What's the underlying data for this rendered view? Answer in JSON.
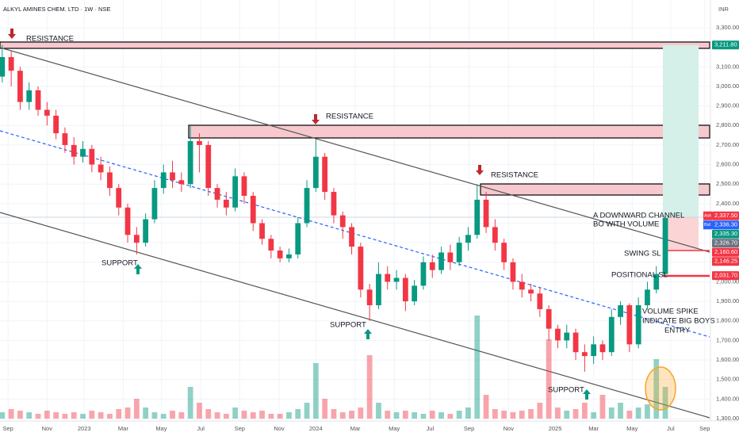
{
  "chart_data": {
    "type": "candlestick",
    "title": "ALKYL AMINES CHEM. LTD · 1W · NSE",
    "currency": "INR",
    "up_color": "#089981",
    "down_color": "#f23645",
    "x": [
      0,
      2,
      4,
      6,
      8,
      10,
      12,
      14,
      16,
      18,
      20,
      22,
      24,
      26,
      28,
      30,
      32,
      34,
      36,
      38,
      40,
      42,
      44,
      46,
      48,
      50,
      52,
      54,
      56,
      58,
      60,
      62,
      64,
      66,
      68,
      70,
      72,
      74,
      76,
      78,
      80,
      82,
      84,
      86,
      88,
      90,
      92,
      94,
      96,
      98,
      100,
      102,
      104,
      106,
      108,
      110,
      112,
      114,
      116,
      118,
      120,
      122,
      124,
      126,
      128,
      130,
      132,
      134,
      136,
      138,
      140,
      142,
      144,
      146,
      148
    ],
    "open": [
      3050,
      3150,
      3080,
      2920,
      2980,
      2880,
      2850,
      2760,
      2700,
      2640,
      2680,
      2600,
      2560,
      2480,
      2380,
      2240,
      2200,
      2320,
      2480,
      2560,
      2520,
      2500,
      2720,
      2700,
      2480,
      2420,
      2380,
      2540,
      2440,
      2300,
      2220,
      2160,
      2120,
      2140,
      2300,
      2480,
      2640,
      2460,
      2340,
      2280,
      2180,
      1960,
      1880,
      2040,
      2000,
      2020,
      1900,
      1980,
      2100,
      2060,
      2150,
      2100,
      2200,
      2240,
      2420,
      2280,
      2200,
      2100,
      2000,
      1960,
      1940,
      1860,
      1760,
      1700,
      1740,
      1640,
      1620,
      1680,
      1640,
      1820,
      1880,
      1680,
      1880,
      1960,
      2040
    ],
    "high": [
      3211.8,
      3180,
      3100,
      3020,
      3000,
      2920,
      2880,
      2790,
      2740,
      2720,
      2700,
      2640,
      2590,
      2500,
      2400,
      2280,
      2350,
      2520,
      2600,
      2620,
      2560,
      2800,
      2760,
      2720,
      2500,
      2460,
      2580,
      2560,
      2460,
      2320,
      2240,
      2180,
      2170,
      2330,
      2520,
      2730,
      2660,
      2480,
      2360,
      2300,
      2200,
      1990,
      2100,
      2080,
      2060,
      2040,
      2010,
      2130,
      2140,
      2180,
      2190,
      2230,
      2280,
      2500,
      2460,
      2320,
      2220,
      2120,
      2040,
      1990,
      1970,
      1880,
      1780,
      1780,
      1760,
      1680,
      1720,
      1700,
      1860,
      1900,
      1890,
      1920,
      2000,
      2080,
      2337.5
    ],
    "low": [
      3020,
      3000,
      2880,
      2880,
      2850,
      2800,
      2730,
      2660,
      2600,
      2610,
      2560,
      2520,
      2440,
      2340,
      2200,
      2140,
      2180,
      2300,
      2450,
      2480,
      2460,
      2480,
      2560,
      2440,
      2380,
      2340,
      2360,
      2400,
      2260,
      2190,
      2120,
      2100,
      2100,
      2120,
      2280,
      2460,
      2420,
      2300,
      2220,
      2140,
      1920,
      1800,
      1860,
      1960,
      1960,
      1850,
      1880,
      1960,
      2020,
      2040,
      2060,
      2080,
      2160,
      2220,
      2250,
      2160,
      2060,
      1960,
      1920,
      1900,
      1820,
      1700,
      1660,
      1660,
      1600,
      1540,
      1580,
      1600,
      1620,
      1780,
      1640,
      1660,
      1860,
      1940,
      2030
    ],
    "close": [
      3150,
      3080,
      2920,
      2980,
      2880,
      2850,
      2760,
      2700,
      2640,
      2680,
      2600,
      2560,
      2480,
      2380,
      2240,
      2200,
      2320,
      2480,
      2560,
      2520,
      2500,
      2720,
      2700,
      2480,
      2420,
      2380,
      2540,
      2440,
      2300,
      2220,
      2160,
      2120,
      2140,
      2300,
      2480,
      2640,
      2460,
      2340,
      2280,
      2180,
      1960,
      1880,
      2040,
      2000,
      2020,
      1900,
      1980,
      2100,
      2060,
      2150,
      2100,
      2200,
      2240,
      2420,
      2280,
      2200,
      2100,
      2000,
      1960,
      1940,
      1860,
      1760,
      1700,
      1740,
      1640,
      1620,
      1680,
      1640,
      1820,
      1880,
      1680,
      1880,
      1960,
      2040,
      2326.7
    ],
    "volume": [
      8,
      12,
      10,
      8,
      6,
      10,
      8,
      6,
      8,
      6,
      10,
      8,
      6,
      12,
      14,
      25,
      14,
      8,
      6,
      10,
      8,
      40,
      20,
      12,
      8,
      6,
      14,
      10,
      8,
      10,
      6,
      6,
      8,
      12,
      20,
      70,
      25,
      12,
      8,
      10,
      14,
      80,
      20,
      10,
      8,
      10,
      8,
      6,
      10,
      8,
      6,
      10,
      14,
      130,
      30,
      12,
      10,
      8,
      10,
      12,
      20,
      100,
      14,
      10,
      12,
      20,
      8,
      30,
      14,
      20,
      10,
      14,
      18,
      75,
      40
    ],
    "xlim": [
      -0.5,
      157.9
    ],
    "xticks": [
      {
        "value": 1.3,
        "label": "Sep"
      },
      {
        "value": 10,
        "label": "Nov"
      },
      {
        "value": 18.3,
        "label": "2023"
      },
      {
        "value": 27,
        "label": "Mar"
      },
      {
        "value": 35.5,
        "label": "May"
      },
      {
        "value": 44.3,
        "label": "Jul"
      },
      {
        "value": 53,
        "label": "Sep"
      },
      {
        "value": 61.8,
        "label": "Nov"
      },
      {
        "value": 70,
        "label": "2024"
      },
      {
        "value": 78.8,
        "label": "Mar"
      },
      {
        "value": 87.5,
        "label": "May"
      },
      {
        "value": 95.5,
        "label": "Jul"
      },
      {
        "value": 104.2,
        "label": "Sep"
      },
      {
        "value": 113,
        "label": "Nov"
      },
      {
        "value": 123.4,
        "label": "2025"
      },
      {
        "value": 132,
        "label": "Mar"
      },
      {
        "value": 140.6,
        "label": "May"
      },
      {
        "value": 149.2,
        "label": "Jul"
      },
      {
        "value": 156.8,
        "label": "Sep"
      }
    ],
    "ylim": [
      1300,
      3300
    ],
    "yticks": [
      {
        "value": 1300,
        "label": "1,300.00"
      },
      {
        "value": 1400,
        "label": "1,400.00"
      },
      {
        "value": 1500,
        "label": "1,500.00"
      },
      {
        "value": 1600,
        "label": "1,600.00"
      },
      {
        "value": 1700,
        "label": "1,700.00"
      },
      {
        "value": 1800,
        "label": "1,800.00"
      },
      {
        "value": 1900,
        "label": "1,900.00"
      },
      {
        "value": 2000,
        "label": "2,000.00"
      },
      {
        "value": 2100,
        "label": "2,100.00"
      },
      {
        "value": 2200,
        "label": "2,200.00"
      },
      {
        "value": 2300,
        "label": "2,300.00"
      },
      {
        "value": 2400,
        "label": "2,400.00"
      },
      {
        "value": 2500,
        "label": "2,500.00"
      },
      {
        "value": 2600,
        "label": "2,600.00"
      },
      {
        "value": 2700,
        "label": "2,700.00"
      },
      {
        "value": 2800,
        "label": "2,800.00"
      },
      {
        "value": 2900,
        "label": "2,900.00"
      },
      {
        "value": 3000,
        "label": "3,000.00"
      },
      {
        "value": 3100,
        "label": "3,100.00"
      },
      {
        "value": 3200,
        "label": "3,200.00"
      },
      {
        "value": 3300,
        "label": "3,300.00"
      }
    ],
    "price_tags": [
      {
        "value": 3211.8,
        "label": "3,211.80",
        "color": "#089981"
      },
      {
        "side": "Ask",
        "value": 2337.5,
        "label": "2,337.50",
        "color": "#f23645"
      },
      {
        "side": "Bid",
        "value": 2336.3,
        "label": "2,336.30",
        "color": "#2962ff"
      },
      {
        "value": 2335.3,
        "label": "2,335.30",
        "color": "#089981"
      },
      {
        "value": 2326.7,
        "label": "2,326.70",
        "color": "#6e7381"
      },
      {
        "value": 2160.6,
        "label": "2,160.60",
        "color": "#f23645"
      },
      {
        "value": 2146.25,
        "label": "2,146.25",
        "color": "#f23645"
      },
      {
        "value": 2031.7,
        "label": "2,031.70",
        "color": "#f23645"
      }
    ],
    "annotations": {
      "resistance": "RESISTANCE",
      "support": "SUPPORT",
      "breakout": [
        "A DOWNWARD CHANNEL",
        "BO WITH VOLUME"
      ],
      "swing_sl": "SWING SL",
      "positional_sl": "POSITIONAL SL",
      "volume_spike": [
        "VOLUME SPIKE",
        "INDICATE BIG BOYS",
        "ENTRY"
      ]
    }
  }
}
